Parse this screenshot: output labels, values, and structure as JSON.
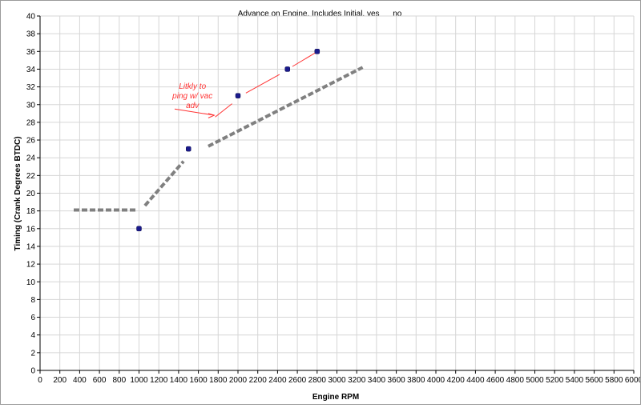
{
  "chart_data": {
    "type": "scatter",
    "title": "Advance on Engine.   Includes Initial, yes __  no __",
    "xlabel": "Engine RPM",
    "ylabel": "Timing (Crank Degrees BTDC)",
    "xlim": [
      0,
      6000
    ],
    "ylim": [
      0,
      40
    ],
    "x_ticks": [
      0,
      200,
      400,
      600,
      800,
      1000,
      1200,
      1400,
      1600,
      1800,
      2000,
      2200,
      2400,
      2600,
      2800,
      3000,
      3200,
      3400,
      3600,
      3800,
      4000,
      4200,
      4400,
      4600,
      4800,
      5000,
      5200,
      5400,
      5600,
      5800,
      6000
    ],
    "y_ticks": [
      0,
      2,
      4,
      6,
      8,
      10,
      12,
      14,
      16,
      18,
      20,
      22,
      24,
      26,
      28,
      30,
      32,
      34,
      36,
      38,
      40
    ],
    "grid": true,
    "legend": "none",
    "points": [
      {
        "x": 1000,
        "y": 16
      },
      {
        "x": 1500,
        "y": 25
      },
      {
        "x": 2000,
        "y": 31
      },
      {
        "x": 2500,
        "y": 34
      },
      {
        "x": 2800,
        "y": 36
      }
    ],
    "point_color": "#1a1a8c",
    "dashed_segments": [
      [
        [
          340,
          18.1
        ],
        [
          980,
          18.1
        ]
      ],
      [
        [
          1060,
          18.6
        ],
        [
          1450,
          23.6
        ]
      ],
      [
        [
          1700,
          25.3
        ],
        [
          3260,
          34.2
        ]
      ]
    ],
    "dashed_color": "#808080",
    "annotation": {
      "lines": [
        "Litkly to",
        "ping w/ vac",
        "adv"
      ],
      "color": "#ff3333",
      "text_anchor": [
        1540,
        31.8
      ],
      "strokes": [
        [
          [
            1360,
            29.5
          ],
          [
            1760,
            28.8
          ]
        ],
        [
          [
            1700,
            29.0
          ],
          [
            1760,
            28.8
          ],
          [
            1700,
            28.5
          ]
        ],
        [
          [
            1770,
            28.6
          ],
          [
            1940,
            30.1
          ]
        ],
        [
          [
            2080,
            31.3
          ],
          [
            2420,
            33.4
          ]
        ],
        [
          [
            2550,
            34.3
          ],
          [
            2790,
            35.9
          ]
        ]
      ]
    }
  }
}
